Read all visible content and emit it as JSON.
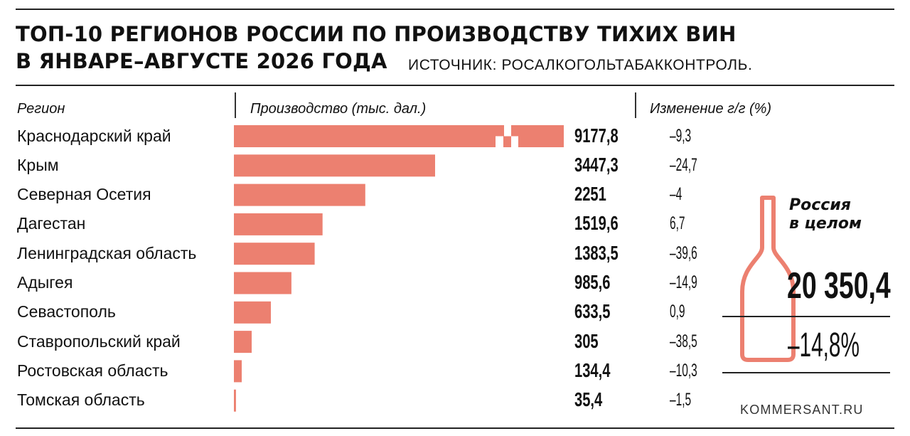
{
  "header": {
    "title_line1": "ТОП-10 РЕГИОНОВ РОССИИ ПО ПРОИЗВОДСТВУ ТИХИХ ВИН",
    "title_line2": "В ЯНВАРЕ–АВГУСТЕ 2026 ГОДА",
    "source": "ИСТОЧНИК: РОСАЛКОГОЛЬТАБАККОНТРОЛЬ."
  },
  "columns": {
    "region": "Регион",
    "production": "Производство (тыс. дал.)",
    "change": "Изменение г/г (%)"
  },
  "chart_data": {
    "type": "bar",
    "orientation": "horizontal",
    "bar_color": "#ec8070",
    "categories": [
      "Краснодарский край",
      "Крым",
      "Северная Осетия",
      "Дагестан",
      "Ленинградская область",
      "Адыгея",
      "Севастополь",
      "Ставропольский край",
      "Ростовская область",
      "Томская область"
    ],
    "value_labels": [
      "9177,8",
      "3447,3",
      "2251",
      "1519,6",
      "1383,5",
      "985,6",
      "633,5",
      "305",
      "134,4",
      "35,4"
    ],
    "values": [
      9177.8,
      3447.3,
      2251,
      1519.6,
      1383.5,
      985.6,
      633.5,
      305,
      134.4,
      35.4
    ],
    "change_labels": [
      "–9,3",
      "–24,7",
      "–4",
      "6,7",
      "–39,6",
      "–14,9",
      "0,9",
      "–38,5",
      "–10,3",
      "–1,5"
    ],
    "change": [
      -9.3,
      -24.7,
      -4,
      6.7,
      -39.6,
      -14.9,
      0.9,
      -38.5,
      -10.3,
      -1.5
    ],
    "broken_axis_on_first_bar": true
  },
  "total": {
    "label_line1": "Россия",
    "label_line2": "в целом",
    "value": "20 350,4",
    "change": "–14,8%",
    "icon": "wine-bottle-icon",
    "color": "#ec8070"
  },
  "footer": {
    "brand": "KOMMERSANT.RU"
  }
}
